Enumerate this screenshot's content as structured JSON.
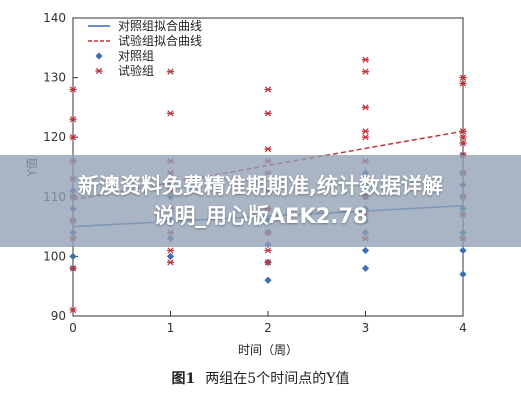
{
  "overlay": {
    "line1": "新澳资料免费精准期期准,统计数据详解",
    "line2": "说明_用心版AEK2.78"
  },
  "caption": {
    "label": "图1",
    "text": "两组在5个时间点的Y值"
  },
  "colors": {
    "control": "#3a6fb0",
    "trial": "#c0333a"
  },
  "chart_data": {
    "type": "scatter",
    "xlabel": "时间（周）",
    "ylabel": "Y值",
    "xlim": [
      0,
      4
    ],
    "ylim": [
      90,
      140
    ],
    "xticks": [
      0,
      1,
      2,
      3,
      4
    ],
    "yticks": [
      90,
      100,
      110,
      120,
      130,
      140
    ],
    "legend_position": "top-left",
    "legend": [
      {
        "label": "对照组拟合曲线",
        "style": "solid-line",
        "color": "#3a6fb0"
      },
      {
        "label": "试验组拟合曲线",
        "style": "dashed-line",
        "color": "#c0333a"
      },
      {
        "label": "对照组",
        "style": "diamond",
        "color": "#3a6fb0"
      },
      {
        "label": "试验组",
        "style": "star",
        "color": "#c0333a"
      }
    ],
    "series": [
      {
        "name": "对照组",
        "marker": "diamond",
        "color": "#3a6fb0",
        "points": [
          [
            0,
            100
          ],
          [
            0,
            104
          ],
          [
            0,
            106
          ],
          [
            0,
            108
          ],
          [
            0,
            110
          ],
          [
            0,
            111
          ],
          [
            0,
            98
          ],
          [
            1,
            100
          ],
          [
            1,
            103
          ],
          [
            1,
            106
          ],
          [
            1,
            108
          ],
          [
            1,
            110
          ],
          [
            1,
            112
          ],
          [
            2,
            96
          ],
          [
            2,
            99
          ],
          [
            2,
            102
          ],
          [
            2,
            104
          ],
          [
            2,
            106
          ],
          [
            2,
            108
          ],
          [
            3,
            98
          ],
          [
            3,
            101
          ],
          [
            3,
            104
          ],
          [
            3,
            106
          ],
          [
            3,
            108
          ],
          [
            3,
            110
          ],
          [
            3,
            112
          ],
          [
            3,
            114
          ],
          [
            4,
            97
          ],
          [
            4,
            101
          ],
          [
            4,
            104
          ],
          [
            4,
            108
          ],
          [
            4,
            110
          ],
          [
            4,
            112
          ],
          [
            4,
            114
          ],
          [
            4,
            117
          ]
        ]
      },
      {
        "name": "试验组",
        "marker": "star",
        "color": "#c0333a",
        "points": [
          [
            0,
            91
          ],
          [
            0,
            98
          ],
          [
            0,
            103
          ],
          [
            0,
            106
          ],
          [
            0,
            110
          ],
          [
            0,
            113
          ],
          [
            0,
            116
          ],
          [
            0,
            120
          ],
          [
            0,
            123
          ],
          [
            0,
            128
          ],
          [
            1,
            99
          ],
          [
            1,
            101
          ],
          [
            1,
            104
          ],
          [
            1,
            108
          ],
          [
            1,
            111
          ],
          [
            1,
            114
          ],
          [
            1,
            116
          ],
          [
            1,
            124
          ],
          [
            1,
            131
          ],
          [
            2,
            99
          ],
          [
            2,
            101
          ],
          [
            2,
            104
          ],
          [
            2,
            108
          ],
          [
            2,
            111
          ],
          [
            2,
            114
          ],
          [
            2,
            116
          ],
          [
            2,
            118
          ],
          [
            2,
            124
          ],
          [
            2,
            128
          ],
          [
            3,
            103
          ],
          [
            3,
            107
          ],
          [
            3,
            110
          ],
          [
            3,
            113
          ],
          [
            3,
            116
          ],
          [
            3,
            120
          ],
          [
            3,
            121
          ],
          [
            3,
            125
          ],
          [
            3,
            131
          ],
          [
            3,
            133
          ],
          [
            4,
            103
          ],
          [
            4,
            107
          ],
          [
            4,
            110
          ],
          [
            4,
            114
          ],
          [
            4,
            117
          ],
          [
            4,
            119
          ],
          [
            4,
            120
          ],
          [
            4,
            121
          ],
          [
            4,
            129
          ],
          [
            4,
            130
          ]
        ]
      }
    ],
    "fit_lines": [
      {
        "name": "对照组拟合曲线",
        "style": "solid",
        "color": "#3a6fb0",
        "points": [
          [
            0,
            105
          ],
          [
            4,
            108.5
          ]
        ]
      },
      {
        "name": "试验组拟合曲线",
        "style": "dashed",
        "color": "#c0333a",
        "points": [
          [
            0,
            109.5
          ],
          [
            4,
            121
          ]
        ]
      }
    ]
  }
}
